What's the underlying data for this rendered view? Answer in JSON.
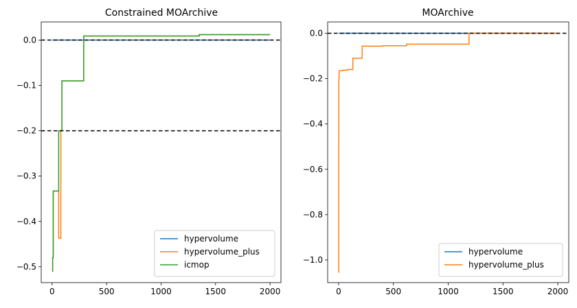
{
  "figure": {
    "title_left": "Constrained MOArchive",
    "title_right": "MOArchive"
  },
  "chart_data": [
    {
      "type": "line",
      "title": "Constrained MOArchive",
      "xlabel": "",
      "ylabel": "",
      "xlim": [
        -100,
        2100
      ],
      "ylim": [
        -0.535,
        0.04
      ],
      "xticks": [
        0,
        500,
        1000,
        1500,
        2000
      ],
      "yticks": [
        0.0,
        -0.1,
        -0.2,
        -0.3,
        -0.4,
        -0.5
      ],
      "xtick_labels": [
        "0",
        "500",
        "1000",
        "1500",
        "2000"
      ],
      "ytick_labels": [
        "0.0",
        "−0.1",
        "−0.2",
        "−0.3",
        "−0.4",
        "−0.5"
      ],
      "hlines": [
        0.0,
        -0.2
      ],
      "legend_position": "lower-right",
      "series": [
        {
          "name": "hypervolume",
          "color": "#1f77b4",
          "step": true,
          "x": [
            0,
            290,
            1350,
            2000
          ],
          "y": [
            0.0,
            0.0,
            0.0,
            0.0
          ]
        },
        {
          "name": "hypervolume_plus",
          "color": "#ff7f0e",
          "step": true,
          "x": [
            0,
            5,
            10,
            60,
            80,
            90,
            290,
            1350,
            2000
          ],
          "y": [
            -0.51,
            -0.48,
            -0.333,
            -0.437,
            -0.2,
            -0.09,
            0.009,
            0.012,
            0.012
          ]
        },
        {
          "name": "icmop",
          "color": "#2ca02c",
          "step": true,
          "x": [
            0,
            5,
            10,
            60,
            90,
            290,
            1350,
            2000
          ],
          "y": [
            -0.51,
            -0.48,
            -0.333,
            -0.2,
            -0.09,
            0.009,
            0.012,
            0.012
          ]
        }
      ]
    },
    {
      "type": "line",
      "title": "MOArchive",
      "xlabel": "",
      "ylabel": "",
      "xlim": [
        -100,
        2100
      ],
      "ylim": [
        -1.1,
        0.05
      ],
      "xticks": [
        0,
        500,
        1000,
        1500,
        2000
      ],
      "yticks": [
        0.0,
        -0.2,
        -0.4,
        -0.6,
        -0.8,
        -1.0
      ],
      "xtick_labels": [
        "0",
        "500",
        "1000",
        "1500",
        "2000"
      ],
      "ytick_labels": [
        "0.0",
        "−0.2",
        "−0.4",
        "−0.6",
        "−0.8",
        "−1.0"
      ],
      "hlines": [
        0.0
      ],
      "legend_position": "lower-right",
      "series": [
        {
          "name": "hypervolume",
          "color": "#1f77b4",
          "step": true,
          "x": [
            0,
            2000
          ],
          "y": [
            0.0,
            0.0
          ]
        },
        {
          "name": "hypervolume_plus",
          "color": "#ff7f0e",
          "step": true,
          "x": [
            0,
            1,
            2,
            4,
            6,
            10,
            40,
            80,
            130,
            215,
            400,
            620,
            1190,
            2000
          ],
          "y": [
            -1.055,
            -0.48,
            -0.2,
            -0.175,
            -0.165,
            -0.165,
            -0.163,
            -0.16,
            -0.11,
            -0.057,
            -0.055,
            -0.048,
            0.0,
            0.0
          ]
        }
      ]
    }
  ]
}
